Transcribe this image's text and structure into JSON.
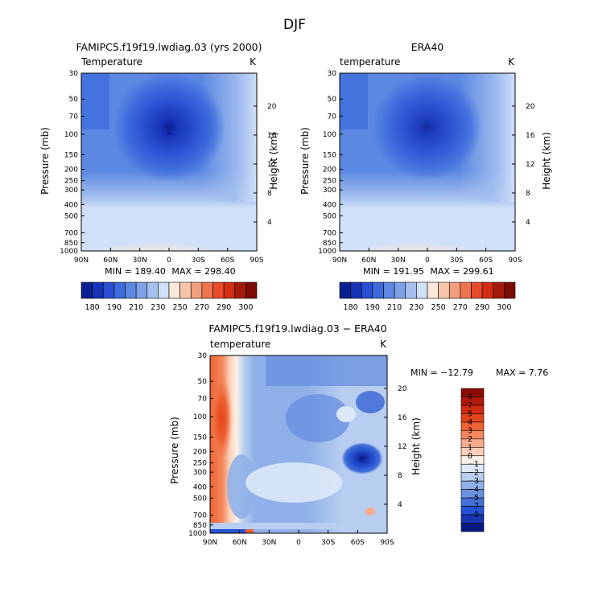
{
  "figure": {
    "main_title": "DJF"
  },
  "chart_data": [
    {
      "type": "heatmap",
      "title": "FAMIPC5.f19f19.lwdiag.03 (yrs 2000)",
      "subtitle": "Temperature",
      "units": "K",
      "xlabel": "",
      "ylabel": "Pressure (mb)",
      "y2label": "Height (km)",
      "x_ticks": [
        "90N",
        "60N",
        "30N",
        "0",
        "30S",
        "60S",
        "90S"
      ],
      "y_ticks": [
        "30",
        "50",
        "70",
        "100",
        "150",
        "200",
        "250",
        "300",
        "400",
        "500",
        "700",
        "850",
        "1000"
      ],
      "y2_ticks": [
        "20",
        "16",
        "12",
        "8",
        "4"
      ],
      "min_label": "MIN = 189.40",
      "max_label": "MAX = 298.40",
      "stats": {
        "min": 189.4,
        "max": 298.4
      },
      "colorbar": {
        "labels": [
          "180",
          "190",
          "210",
          "230",
          "250",
          "270",
          "290",
          "300"
        ],
        "colors": [
          "#0b2090",
          "#1734b8",
          "#2a4fd0",
          "#3e6cdc",
          "#5c88e2",
          "#7ea2e6",
          "#a5c0ef",
          "#cfe0f8",
          "#fbe8da",
          "#f7c5aa",
          "#f29d7e",
          "#ee7450",
          "#e84a2a",
          "#d12e14",
          "#a51b0a",
          "#7c0c04"
        ]
      },
      "field": "temperature"
    },
    {
      "type": "heatmap",
      "title": "ERA40",
      "subtitle": "temperature",
      "units": "K",
      "xlabel": "",
      "ylabel": "Pressure (mb)",
      "y2label": "Height (km)",
      "x_ticks": [
        "90N",
        "60N",
        "30N",
        "0",
        "30S",
        "60S",
        "90S"
      ],
      "y_ticks": [
        "30",
        "50",
        "70",
        "100",
        "150",
        "200",
        "250",
        "300",
        "400",
        "500",
        "700",
        "850",
        "1000"
      ],
      "y2_ticks": [
        "20",
        "16",
        "12",
        "8",
        "4"
      ],
      "min_label": "MIN = 191.95",
      "max_label": "MAX = 299.61",
      "stats": {
        "min": 191.95,
        "max": 299.61
      },
      "colorbar": {
        "labels": [
          "180",
          "190",
          "210",
          "230",
          "250",
          "270",
          "290",
          "300"
        ],
        "colors": [
          "#0b2090",
          "#1734b8",
          "#2a4fd0",
          "#3e6cdc",
          "#5c88e2",
          "#7ea2e6",
          "#a5c0ef",
          "#cfe0f8",
          "#fbe8da",
          "#f7c5aa",
          "#f29d7e",
          "#ee7450",
          "#e84a2a",
          "#d12e14",
          "#a51b0a",
          "#7c0c04"
        ]
      },
      "field": "temperature"
    },
    {
      "type": "heatmap",
      "title": "FAMIPC5.f19f19.lwdiag.03 − ERA40",
      "subtitle": "temperature",
      "units": "K",
      "xlabel": "",
      "ylabel": "Pressure (mb)",
      "y2label": "Height (km)",
      "x_ticks": [
        "90N",
        "60N",
        "30N",
        "0",
        "30S",
        "60S",
        "90S"
      ],
      "y_ticks": [
        "30",
        "50",
        "70",
        "100",
        "150",
        "200",
        "250",
        "300",
        "400",
        "500",
        "700",
        "850",
        "1000"
      ],
      "y2_ticks": [
        "20",
        "16",
        "12",
        "8",
        "4"
      ],
      "min_label": "MIN = −12.79",
      "max_label": "MAX =    7.76",
      "stats": {
        "min": -12.79,
        "max": 7.76
      },
      "colorbar": {
        "labels": [
          "9",
          "7",
          "5",
          "4",
          "3",
          "2",
          "1",
          "0",
          "−1",
          "−2",
          "−3",
          "−4",
          "−5",
          "−7",
          "−9"
        ],
        "colors": [
          "#8c0a05",
          "#b1190c",
          "#cf2a12",
          "#e44419",
          "#ee6234",
          "#f4875d",
          "#f8ab8c",
          "#fbcfb9",
          "#fdf0e6",
          "#dde9f8",
          "#b8cef0",
          "#8fb0e8",
          "#6a91e0",
          "#4570d8",
          "#2552d2",
          "#1834b2",
          "#0a1a80"
        ]
      },
      "field": "difference"
    }
  ]
}
